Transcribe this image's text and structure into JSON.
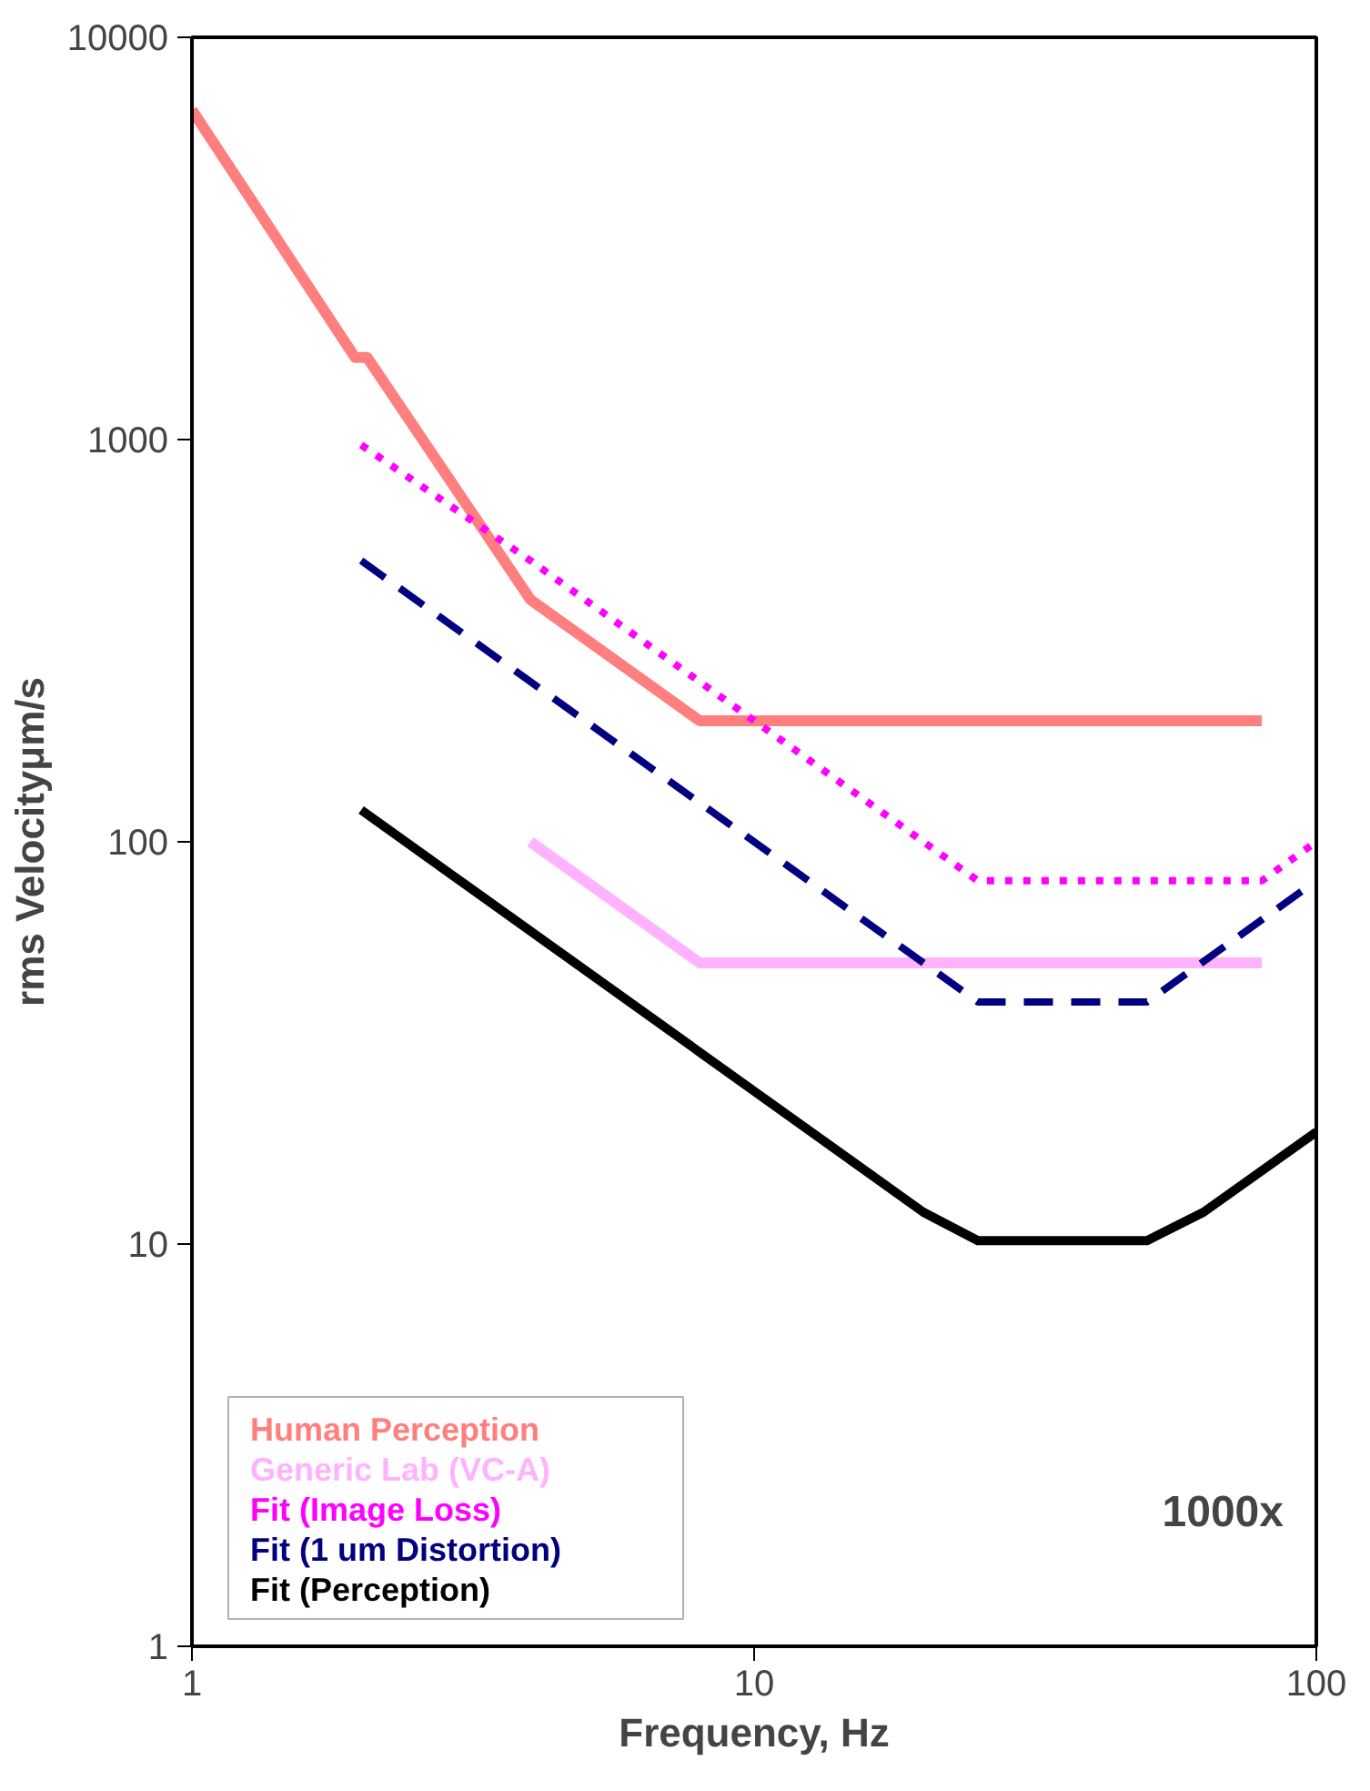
{
  "chart_data": {
    "type": "line",
    "xlabel": "Frequency, Hz",
    "ylabel": "rms Velocityμm/s",
    "log": "xy",
    "xlim": [
      1,
      100
    ],
    "xticks": [
      1,
      10,
      100
    ],
    "ylim": [
      1,
      10000
    ],
    "yticks": [
      1,
      10,
      100,
      1000,
      10000
    ],
    "grid": false,
    "legend": "bottom left",
    "annotations": [
      "1000x"
    ],
    "series": [
      {
        "name": "Human Perception",
        "color": "#ff7f7f",
        "line_style": "solid",
        "x": [
          1,
          1.95,
          2.05,
          4,
          8,
          80
        ],
        "values": [
          6600,
          1600,
          1600,
          400,
          200,
          200
        ]
      },
      {
        "name": "Generic Lab (VC-A)",
        "color": "#ffb3ff",
        "line_style": "solid",
        "x": [
          4,
          8,
          80
        ],
        "values": [
          100,
          50,
          50
        ]
      },
      {
        "name": "Fit (Image Loss)",
        "color": "#ff00ff",
        "line_style": "dotted",
        "x": [
          2,
          4,
          8,
          25,
          80,
          100
        ],
        "values": [
          970,
          500,
          250,
          80,
          80,
          100
        ]
      },
      {
        "name": "Fit (1 um Distortion)",
        "color": "#000080",
        "line_style": "dashed",
        "x": [
          2,
          4,
          8,
          20,
          25,
          50,
          100
        ],
        "values": [
          500,
          250,
          125,
          50,
          40,
          40,
          80
        ]
      },
      {
        "name": "Fit (Perception)",
        "color": "#000000",
        "line_style": "solid",
        "x": [
          2,
          10,
          20,
          25,
          50,
          63,
          100
        ],
        "values": [
          120,
          24,
          12,
          10.2,
          10.2,
          12,
          19
        ]
      }
    ]
  }
}
